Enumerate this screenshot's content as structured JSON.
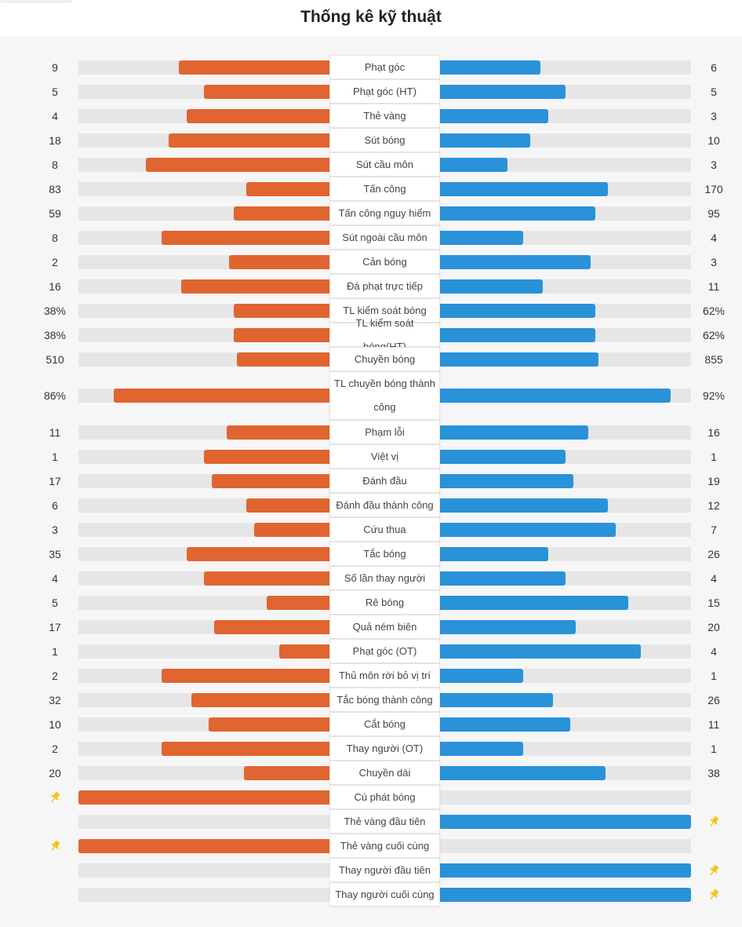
{
  "title": "Thống kê kỹ thuật",
  "colors": {
    "home": "#e06530",
    "away": "#2a92d8",
    "pin": "#f5c518"
  },
  "stats": [
    {
      "label": "Phạt góc",
      "home": "9",
      "away": "6",
      "home_pct": 0.6,
      "away_pct": 0.4
    },
    {
      "label": "Phạt góc (HT)",
      "home": "5",
      "away": "5",
      "home_pct": 0.5,
      "away_pct": 0.5
    },
    {
      "label": "Thẻ vàng",
      "home": "4",
      "away": "3",
      "home_pct": 0.57,
      "away_pct": 0.43
    },
    {
      "label": "Sút bóng",
      "home": "18",
      "away": "10",
      "home_pct": 0.64,
      "away_pct": 0.36
    },
    {
      "label": "Sút cầu môn",
      "home": "8",
      "away": "3",
      "home_pct": 0.73,
      "away_pct": 0.27
    },
    {
      "label": "Tấn công",
      "home": "83",
      "away": "170",
      "home_pct": 0.33,
      "away_pct": 0.67
    },
    {
      "label": "Tấn công nguy hiểm",
      "home": "59",
      "away": "95",
      "home_pct": 0.38,
      "away_pct": 0.62
    },
    {
      "label": "Sút ngoài cầu môn",
      "home": "8",
      "away": "4",
      "home_pct": 0.67,
      "away_pct": 0.33
    },
    {
      "label": "Cản bóng",
      "home": "2",
      "away": "3",
      "home_pct": 0.4,
      "away_pct": 0.6
    },
    {
      "label": "Đá phạt trực tiếp",
      "home": "16",
      "away": "11",
      "home_pct": 0.59,
      "away_pct": 0.41
    },
    {
      "label": "TL kiểm soát bóng",
      "home": "38%",
      "away": "62%",
      "home_pct": 0.38,
      "away_pct": 0.62
    },
    {
      "label": "TL kiểm soát bóng(HT)",
      "home": "38%",
      "away": "62%",
      "home_pct": 0.38,
      "away_pct": 0.62
    },
    {
      "label": "Chuyền bóng",
      "home": "510",
      "away": "855",
      "home_pct": 0.37,
      "away_pct": 0.63
    },
    {
      "label": "TL chuyền bóng thành công",
      "home": "86%",
      "away": "92%",
      "home_pct": 0.86,
      "away_pct": 0.92,
      "tall": true
    },
    {
      "label": "Phạm lỗi",
      "home": "11",
      "away": "16",
      "home_pct": 0.41,
      "away_pct": 0.59
    },
    {
      "label": "Việt vị",
      "home": "1",
      "away": "1",
      "home_pct": 0.5,
      "away_pct": 0.5
    },
    {
      "label": "Đánh đầu",
      "home": "17",
      "away": "19",
      "home_pct": 0.47,
      "away_pct": 0.53
    },
    {
      "label": "Đánh đầu thành công",
      "home": "6",
      "away": "12",
      "home_pct": 0.33,
      "away_pct": 0.67
    },
    {
      "label": "Cứu thua",
      "home": "3",
      "away": "7",
      "home_pct": 0.3,
      "away_pct": 0.7
    },
    {
      "label": "Tắc bóng",
      "home": "35",
      "away": "26",
      "home_pct": 0.57,
      "away_pct": 0.43
    },
    {
      "label": "Số lần thay người",
      "home": "4",
      "away": "4",
      "home_pct": 0.5,
      "away_pct": 0.5
    },
    {
      "label": "Rê bóng",
      "home": "5",
      "away": "15",
      "home_pct": 0.25,
      "away_pct": 0.75
    },
    {
      "label": "Quả ném biên",
      "home": "17",
      "away": "20",
      "home_pct": 0.46,
      "away_pct": 0.54
    },
    {
      "label": "Phạt góc (OT)",
      "home": "1",
      "away": "4",
      "home_pct": 0.2,
      "away_pct": 0.8
    },
    {
      "label": "Thủ môn rời bỏ vị trí",
      "home": "2",
      "away": "1",
      "home_pct": 0.67,
      "away_pct": 0.33
    },
    {
      "label": "Tắc bóng thành công",
      "home": "32",
      "away": "26",
      "home_pct": 0.55,
      "away_pct": 0.45
    },
    {
      "label": "Cắt bóng",
      "home": "10",
      "away": "11",
      "home_pct": 0.48,
      "away_pct": 0.52
    },
    {
      "label": "Thay người (OT)",
      "home": "2",
      "away": "1",
      "home_pct": 0.67,
      "away_pct": 0.33
    },
    {
      "label": "Chuyền dài",
      "home": "20",
      "away": "38",
      "home_pct": 0.34,
      "away_pct": 0.66
    },
    {
      "label": "Cú phát bóng",
      "home_pin": true,
      "home_pct": 1,
      "away_pct": 0
    },
    {
      "label": "Thẻ vàng đầu tiên",
      "away_pin": true,
      "home_pct": 0,
      "away_pct": 1
    },
    {
      "label": "Thẻ vàng cuối cùng",
      "home_pin": true,
      "home_pct": 1,
      "away_pct": 0
    },
    {
      "label": "Thay người đầu tiên",
      "away_pin": true,
      "home_pct": 0,
      "away_pct": 1
    },
    {
      "label": "Thay người cuối cùng",
      "away_pin": true,
      "home_pct": 0,
      "away_pct": 1
    }
  ]
}
